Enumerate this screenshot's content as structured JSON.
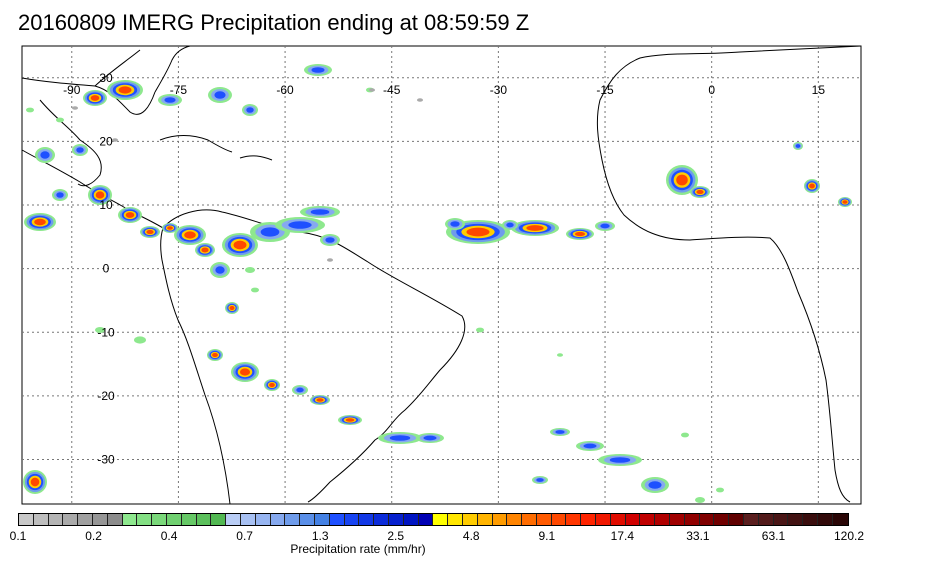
{
  "title": "20160809 IMERG Precipitation ending at 08:59:59 Z",
  "map": {
    "lon_labels": [
      "-90",
      "-75",
      "-60",
      "-45",
      "-30",
      "-15",
      "0",
      "15"
    ],
    "lon_values": [
      -90,
      -75,
      -60,
      -45,
      -30,
      -15,
      0,
      15
    ],
    "lat_labels": [
      "30",
      "20",
      "10",
      "0",
      "-10",
      "-20",
      "-30"
    ],
    "lat_values": [
      30,
      20,
      10,
      0,
      -10,
      -20,
      -30
    ],
    "lon_range": [
      -97,
      21
    ],
    "lat_range": [
      35,
      -37
    ],
    "gridlines": true
  },
  "colorbar": {
    "label": "Precipitation rate (mm/hr)",
    "tick_labels": [
      "0.1",
      "0.2",
      "0.4",
      "0.7",
      "1.3",
      "2.5",
      "4.8",
      "9.1",
      "17.4",
      "33.1",
      "63.1",
      "120.2"
    ],
    "colors": [
      "#c8c8c8",
      "#bebebe",
      "#b4b4b4",
      "#aaaaaa",
      "#a0a0a0",
      "#969696",
      "#8c8c8c",
      "#8ee88e",
      "#84e084",
      "#7ad87a",
      "#70d070",
      "#66c866",
      "#5cc05c",
      "#52b852",
      "#b9cdf5",
      "#a8c1f3",
      "#97b5f1",
      "#86a9ef",
      "#6f9ceb",
      "#5a8fe8",
      "#4481e4",
      "#1e50ff",
      "#1844f2",
      "#1238e6",
      "#0c2cda",
      "#0620ce",
      "#0014c2",
      "#0000b4",
      "#ffff00",
      "#ffe600",
      "#ffcc00",
      "#ffb400",
      "#ff9c00",
      "#ff8400",
      "#ff6c00",
      "#ff5a00",
      "#ff4800",
      "#ff3600",
      "#ff2400",
      "#f01800",
      "#e00c00",
      "#d00000",
      "#c00000",
      "#b00000",
      "#a00000",
      "#900000",
      "#800000",
      "#700000",
      "#600000",
      "#5a1e1e",
      "#521a1a",
      "#4a1616",
      "#421212",
      "#3a0e0e",
      "#320a0a",
      "#2a0606"
    ]
  }
}
